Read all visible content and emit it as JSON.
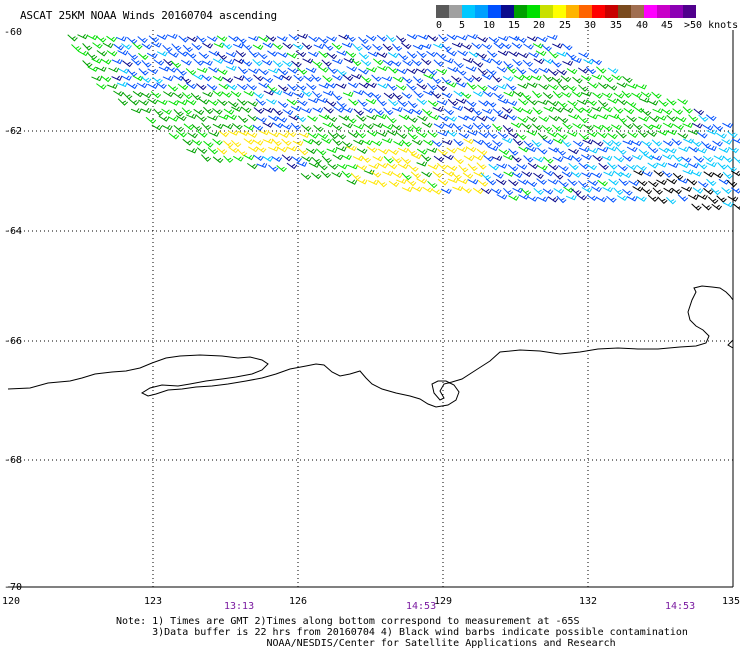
{
  "title": "ASCAT 25KM NOAA Winds 20160704 ascending",
  "speed_scale": {
    "labels": [
      "0",
      "5",
      "10",
      "15",
      "20",
      "25",
      "30",
      "35",
      "40",
      "45",
      ">50 knots"
    ],
    "colors": [
      "#5a5a5a",
      "#a0a0a0",
      "#00c8ff",
      "#00a0ff",
      "#0050ff",
      "#0a0a8c",
      "#00a000",
      "#00e000",
      "#c8e000",
      "#ffff00",
      "#ffb400",
      "#ff6400",
      "#ff0000",
      "#c80000",
      "#7a4a1e",
      "#a06e50",
      "#ff00ff",
      "#c800c8",
      "#8c00b4",
      "#50008c"
    ]
  },
  "axes": {
    "lat_labels": [
      "-60",
      "-62",
      "-64",
      "-66",
      "-68",
      "-70"
    ],
    "lon_labels": [
      "120",
      "123",
      "126",
      "129",
      "132",
      "135"
    ]
  },
  "times": [
    "13:13",
    "14:53",
    "14:53"
  ],
  "notes": [
    "Note: 1) Times are GMT 2)Times along bottom correspond to measurement at -65S",
    "      3)Data buffer is 22 hrs from 20160704 4) Black wind barbs indicate possible contamination",
    "                         NOAA/NESDIS/Center for Satellite Applications and Research"
  ],
  "wind_colors": {
    "light": "#00c8ff",
    "medium": "#0050ff",
    "dark_blue": "#0a0a8c",
    "green": "#00a000",
    "lime": "#00e000",
    "yellow": "#ffe600",
    "contaminated": "#000000"
  }
}
